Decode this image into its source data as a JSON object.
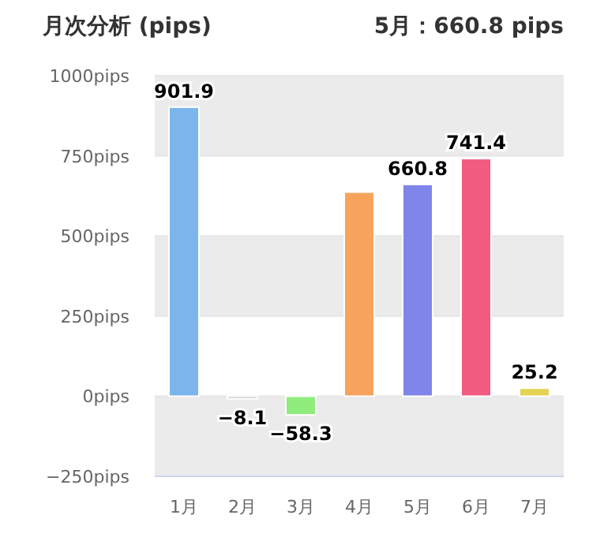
{
  "chart_data": {
    "type": "bar",
    "title": "月次分析 (pips)",
    "annotations": [
      "5月：660.8 pips"
    ],
    "categories": [
      "1月",
      "2月",
      "3月",
      "4月",
      "5月",
      "6月",
      "7月"
    ],
    "values": [
      901.9,
      -8.1,
      -58.3,
      637,
      660.8,
      741.4,
      25.2
    ],
    "colors": [
      "#7cb5ec",
      "#c8c8c8",
      "#90ed7d",
      "#f7a35c",
      "#8085e9",
      "#f15c80",
      "#e4d354"
    ],
    "value_labels": [
      "901.9",
      "−8.1",
      "−58.3",
      null,
      "660.8",
      "741.4",
      "25.2"
    ],
    "ylim": [
      -250,
      1000
    ],
    "yticks": [
      {
        "value": -250,
        "label": "−250pips"
      },
      {
        "value": 0,
        "label": "0pips"
      },
      {
        "value": 250,
        "label": "250pips"
      },
      {
        "value": 500,
        "label": "500pips"
      },
      {
        "value": 750,
        "label": "750pips"
      },
      {
        "value": 1000,
        "label": "1000pips"
      }
    ],
    "bands": [
      {
        "axis": "y",
        "from": 750,
        "to": 1000,
        "color": "#ebebeb"
      },
      {
        "axis": "y",
        "from": 250,
        "to": 500,
        "color": "#ebebeb"
      },
      {
        "axis": "y",
        "from": -250,
        "to": 0,
        "color": "#ebebeb"
      }
    ],
    "grid": "y"
  }
}
